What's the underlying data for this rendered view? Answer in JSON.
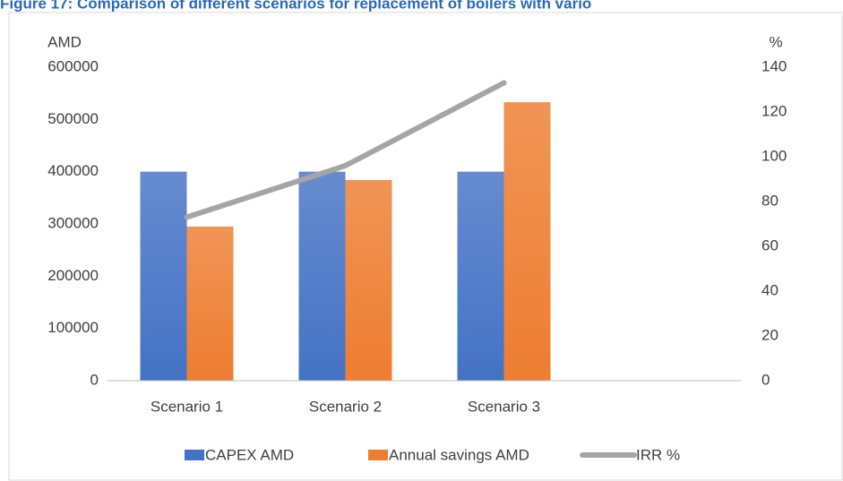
{
  "chart_data": {
    "type": "bar",
    "title": "Figure 17: Comparison of different scenarios for replacement of boilers with vario",
    "y_label": "AMD",
    "y2_label": "%",
    "categories": [
      "Scenario 1",
      "Scenario 2",
      "Scenario 3",
      null
    ],
    "series": [
      {
        "name": "CAPEX AMD",
        "color": "#4472c4",
        "values": [
          400000,
          400000,
          400000,
          null
        ]
      },
      {
        "name": "Annual savings AMD",
        "color": "#ed7d31",
        "values": [
          295000,
          384000,
          533000,
          null
        ]
      },
      {
        "name": "IRR %",
        "color": "#a5a5a5",
        "type": "line",
        "axis": "y2",
        "values": [
          73,
          96,
          133,
          null
        ]
      }
    ],
    "ylim": [
      0,
      600000
    ],
    "yticks": [
      0,
      100000,
      200000,
      300000,
      400000,
      500000,
      600000
    ],
    "y2lim": [
      0,
      140
    ],
    "y2ticks": [
      0,
      20,
      40,
      60,
      80,
      100,
      120,
      140
    ],
    "grid": false,
    "legend": "bottom"
  }
}
